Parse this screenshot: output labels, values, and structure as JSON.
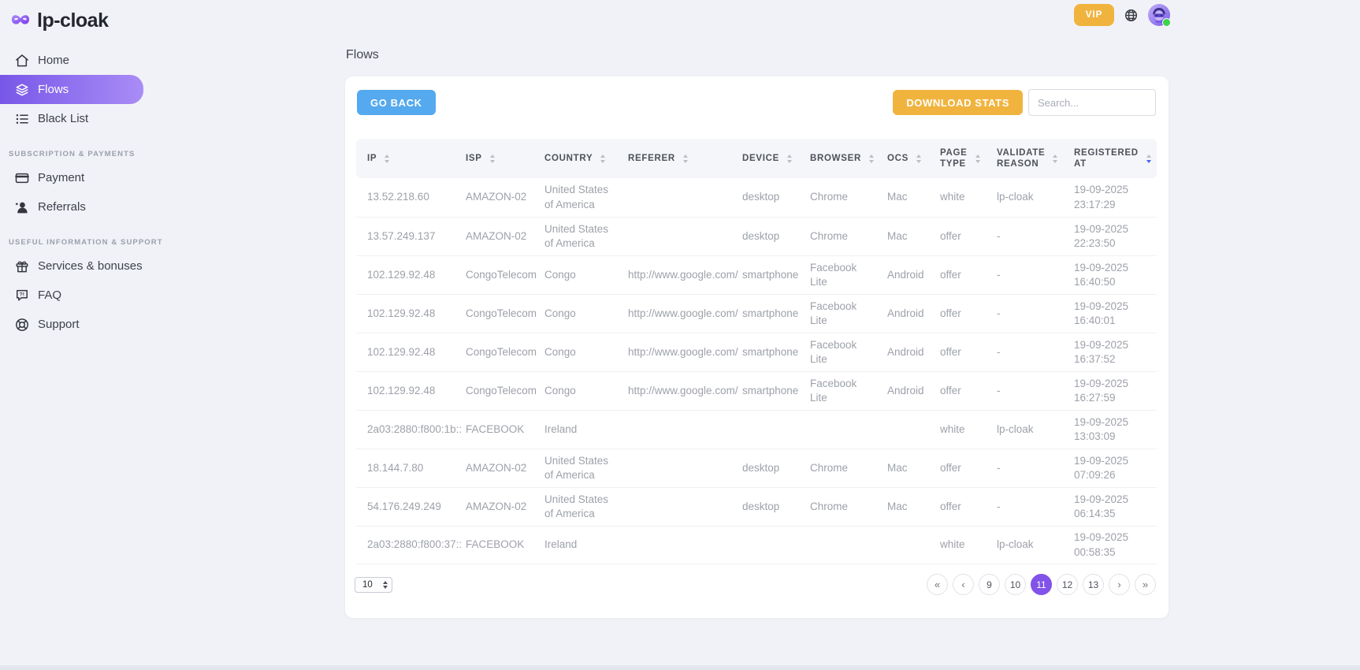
{
  "brand": {
    "name": "lp-cloak",
    "logo_icon": "mask-icon"
  },
  "topbar": {
    "vip_label": "VIP",
    "globe_icon": "globe-icon",
    "avatar_status": "online"
  },
  "sidebar": {
    "groups": [
      {
        "heading": "",
        "items": [
          {
            "label": "Home",
            "icon": "home",
            "active": false
          },
          {
            "label": "Flows",
            "icon": "flows",
            "active": true
          },
          {
            "label": "Black List",
            "icon": "black-list",
            "active": false
          }
        ]
      },
      {
        "heading": "SUBSCRIPTION & PAYMENTS",
        "items": [
          {
            "label": "Payment",
            "icon": "payment",
            "active": false
          },
          {
            "label": "Referrals",
            "icon": "referrals",
            "active": false
          }
        ]
      },
      {
        "heading": "USEFUL INFORMATION & SUPPORT",
        "items": [
          {
            "label": "Services & bonuses",
            "icon": "services",
            "active": false
          },
          {
            "label": "FAQ",
            "icon": "faq",
            "active": false
          },
          {
            "label": "Support",
            "icon": "support",
            "active": false
          }
        ]
      }
    ]
  },
  "main": {
    "page_title": "Flows",
    "toolbar": {
      "go_back_label": "GO BACK",
      "download_stats_label": "DOWNLOAD STATS",
      "search_placeholder": "Search..."
    }
  },
  "table": {
    "columns": [
      {
        "key": "ip",
        "label": "IP",
        "sorted": ""
      },
      {
        "key": "isp",
        "label": "ISP",
        "sorted": ""
      },
      {
        "key": "country",
        "label": "COUNTRY",
        "sorted": ""
      },
      {
        "key": "referer",
        "label": "REFERER",
        "sorted": ""
      },
      {
        "key": "device",
        "label": "DEVICE",
        "sorted": ""
      },
      {
        "key": "browser",
        "label": "BROWSER",
        "sorted": ""
      },
      {
        "key": "ocs",
        "label": "OCS",
        "sorted": ""
      },
      {
        "key": "page_type",
        "label": "PAGE TYPE",
        "sorted": ""
      },
      {
        "key": "validate_reason",
        "label": "VALIDATE REASON",
        "sorted": ""
      },
      {
        "key": "registered_at",
        "label": "REGISTERED AT",
        "sorted": "desc"
      }
    ],
    "rows": [
      {
        "ip": "13.52.218.60",
        "isp": "AMAZON-02",
        "country": "United States of America",
        "referer": "",
        "device": "desktop",
        "browser": "Chrome",
        "ocs": "Mac",
        "page_type": "white",
        "validate_reason": "lp-cloak",
        "registered_at": "19-09-2025 23:17:29"
      },
      {
        "ip": "13.57.249.137",
        "isp": "AMAZON-02",
        "country": "United States of America",
        "referer": "",
        "device": "desktop",
        "browser": "Chrome",
        "ocs": "Mac",
        "page_type": "offer",
        "validate_reason": "-",
        "registered_at": "19-09-2025 22:23:50"
      },
      {
        "ip": "102.129.92.48",
        "isp": "CongoTelecom",
        "country": "Congo",
        "referer": "http://www.google.com/",
        "device": "smartphone",
        "browser": "Facebook Lite",
        "ocs": "Android",
        "page_type": "offer",
        "validate_reason": "-",
        "registered_at": "19-09-2025 16:40:50"
      },
      {
        "ip": "102.129.92.48",
        "isp": "CongoTelecom",
        "country": "Congo",
        "referer": "http://www.google.com/",
        "device": "smartphone",
        "browser": "Facebook Lite",
        "ocs": "Android",
        "page_type": "offer",
        "validate_reason": "-",
        "registered_at": "19-09-2025 16:40:01"
      },
      {
        "ip": "102.129.92.48",
        "isp": "CongoTelecom",
        "country": "Congo",
        "referer": "http://www.google.com/",
        "device": "smartphone",
        "browser": "Facebook Lite",
        "ocs": "Android",
        "page_type": "offer",
        "validate_reason": "-",
        "registered_at": "19-09-2025 16:37:52"
      },
      {
        "ip": "102.129.92.48",
        "isp": "CongoTelecom",
        "country": "Congo",
        "referer": "http://www.google.com/",
        "device": "smartphone",
        "browser": "Facebook Lite",
        "ocs": "Android",
        "page_type": "offer",
        "validate_reason": "-",
        "registered_at": "19-09-2025 16:27:59"
      },
      {
        "ip": "2a03:2880:f800:1b::",
        "isp": "FACEBOOK",
        "country": "Ireland",
        "referer": "",
        "device": "",
        "browser": "",
        "ocs": "",
        "page_type": "white",
        "validate_reason": "lp-cloak",
        "registered_at": "19-09-2025 13:03:09"
      },
      {
        "ip": "18.144.7.80",
        "isp": "AMAZON-02",
        "country": "United States of America",
        "referer": "",
        "device": "desktop",
        "browser": "Chrome",
        "ocs": "Mac",
        "page_type": "offer",
        "validate_reason": "-",
        "registered_at": "19-09-2025 07:09:26"
      },
      {
        "ip": "54.176.249.249",
        "isp": "AMAZON-02",
        "country": "United States of America",
        "referer": "",
        "device": "desktop",
        "browser": "Chrome",
        "ocs": "Mac",
        "page_type": "offer",
        "validate_reason": "-",
        "registered_at": "19-09-2025 06:14:35"
      },
      {
        "ip": "2a03:2880:f800:37::",
        "isp": "FACEBOOK",
        "country": "Ireland",
        "referer": "",
        "device": "",
        "browser": "",
        "ocs": "",
        "page_type": "white",
        "validate_reason": "lp-cloak",
        "registered_at": "19-09-2025 00:58:35"
      }
    ]
  },
  "pagination": {
    "page_size": "10",
    "pages": [
      {
        "label": "«",
        "type": "first"
      },
      {
        "label": "‹",
        "type": "prev"
      },
      {
        "label": "9"
      },
      {
        "label": "10"
      },
      {
        "label": "11",
        "active": true
      },
      {
        "label": "12"
      },
      {
        "label": "13"
      },
      {
        "label": "›",
        "type": "next"
      },
      {
        "label": "»",
        "type": "last"
      }
    ]
  },
  "colors": {
    "accent_purple": "#8153e8",
    "sidebar_gradient_start": "#7857e8",
    "sidebar_gradient_end": "#a98cf6",
    "button_blue": "#55a9ee",
    "button_orange": "#f0b43e",
    "online_green": "#3fd24d",
    "sorted_arrow_blue": "#4364ee"
  }
}
